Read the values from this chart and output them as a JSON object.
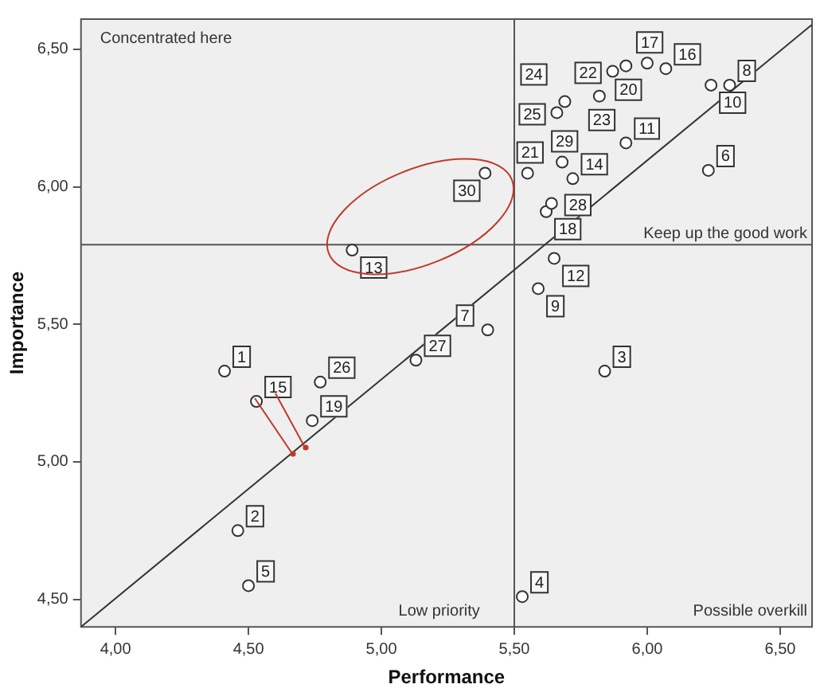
{
  "chart_data": {
    "type": "scatter",
    "xlabel": "Performance",
    "ylabel": "Importance",
    "xlim": [
      3.87,
      6.62
    ],
    "ylim": [
      4.4,
      6.61
    ],
    "xticks": [
      {
        "value": 4,
        "label": "4,00"
      },
      {
        "value": 4.5,
        "label": "4,50"
      },
      {
        "value": 5,
        "label": "5,00"
      },
      {
        "value": 5.5,
        "label": "5,50"
      },
      {
        "value": 6,
        "label": "6,00"
      },
      {
        "value": 6.5,
        "label": "6,50"
      }
    ],
    "yticks": [
      {
        "value": 4.5,
        "label": "4,50"
      },
      {
        "value": 5,
        "label": "5,00"
      },
      {
        "value": 5.5,
        "label": "5,50"
      },
      {
        "value": 6,
        "label": "6,00"
      },
      {
        "value": 6.5,
        "label": "6,50"
      }
    ],
    "legend": false,
    "marker": "circle",
    "series": [
      {
        "color": "#333333",
        "x": [
          4.41,
          4.46,
          5.84,
          5.53,
          4.5,
          6.23,
          5.4,
          6.31,
          5.59,
          6.24,
          5.92,
          5.65,
          4.89,
          5.72,
          4.53,
          6.07,
          6.0,
          5.62,
          4.74,
          5.92,
          5.55,
          5.87,
          5.82,
          5.69,
          5.66,
          4.77,
          5.13,
          5.64,
          5.68,
          5.39
        ],
        "values": [
          5.33,
          4.75,
          5.33,
          4.51,
          4.55,
          6.06,
          5.48,
          6.37,
          5.63,
          6.37,
          6.16,
          5.74,
          5.77,
          6.03,
          5.22,
          6.43,
          6.45,
          5.91,
          5.15,
          6.44,
          6.05,
          6.42,
          6.33,
          6.31,
          6.27,
          5.29,
          5.37,
          5.94,
          6.09,
          6.05
        ]
      },
      {
        "type": "line",
        "color": "#333333",
        "marker": "none",
        "line_style": "solid",
        "x": [
          3.87,
          6.62
        ],
        "values": [
          4.4,
          6.59
        ]
      }
    ],
    "ref_lines": [
      {
        "axis": "x",
        "value": 5.5,
        "color": "#555555"
      },
      {
        "axis": "y",
        "value": 5.79,
        "color": "#555555"
      }
    ],
    "annotations": [
      "Concentrated here",
      "Keep up the good work",
      "Low priority",
      "Possible overkill",
      {
        "text": "1",
        "x": 4.41,
        "y": 5.33
      },
      {
        "text": "2",
        "x": 4.46,
        "y": 4.75
      },
      {
        "text": "3",
        "x": 5.84,
        "y": 5.33
      },
      {
        "text": "4",
        "x": 5.53,
        "y": 4.51
      },
      {
        "text": "5",
        "x": 4.5,
        "y": 4.55
      },
      {
        "text": "6",
        "x": 6.23,
        "y": 6.06
      },
      {
        "text": "7",
        "x": 5.4,
        "y": 5.48
      },
      {
        "text": "8",
        "x": 6.31,
        "y": 6.37
      },
      {
        "text": "9",
        "x": 5.59,
        "y": 5.63
      },
      {
        "text": "10",
        "x": 6.24,
        "y": 6.37
      },
      {
        "text": "11",
        "x": 5.92,
        "y": 6.16
      },
      {
        "text": "12",
        "x": 5.65,
        "y": 5.74
      },
      {
        "text": "13",
        "x": 4.89,
        "y": 5.77
      },
      {
        "text": "14",
        "x": 5.72,
        "y": 6.03
      },
      {
        "text": "15",
        "x": 4.53,
        "y": 5.22
      },
      {
        "text": "16",
        "x": 6.07,
        "y": 6.43
      },
      {
        "text": "17",
        "x": 6.0,
        "y": 6.45
      },
      {
        "text": "18",
        "x": 5.62,
        "y": 5.91
      },
      {
        "text": "19",
        "x": 4.74,
        "y": 5.15
      },
      {
        "text": "20",
        "x": 5.92,
        "y": 6.44
      },
      {
        "text": "21",
        "x": 5.55,
        "y": 6.05
      },
      {
        "text": "22",
        "x": 5.87,
        "y": 6.42
      },
      {
        "text": "23",
        "x": 5.82,
        "y": 6.33
      },
      {
        "text": "24",
        "x": 5.69,
        "y": 6.31
      },
      {
        "text": "25",
        "x": 5.66,
        "y": 6.27
      },
      {
        "text": "26",
        "x": 4.77,
        "y": 5.29
      },
      {
        "text": "27",
        "x": 5.13,
        "y": 5.37
      },
      {
        "text": "28",
        "x": 5.64,
        "y": 5.94
      },
      {
        "text": "29",
        "x": 5.68,
        "y": 6.09
      },
      {
        "text": "30",
        "x": 5.39,
        "y": 6.05
      }
    ]
  }
}
